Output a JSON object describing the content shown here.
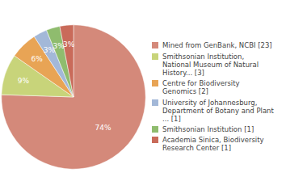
{
  "chart_data": {
    "type": "pie",
    "categories": [
      "Mined from GenBank, NCBI [23]",
      "Smithsonian Institution,\nNational Museum of Natural\nHistory... [3]",
      "Centre for Biodiversity\nGenomics [2]",
      "University of Johannesburg,\nDepartment of Botany and Plant\n... [1]",
      "Smithsonian Institution [1]",
      "Academia Sinica, Biodiversity\nResearch Center [1]"
    ],
    "values": [
      74,
      9,
      6,
      3,
      3,
      3
    ],
    "value_labels": [
      "74%",
      "9%",
      "6%",
      "3%",
      "3%",
      "3%"
    ],
    "colors": [
      "#d4897a",
      "#c8d47a",
      "#e8a455",
      "#a3b8d8",
      "#8fbc6e",
      "#c96b5a"
    ],
    "data_labels": true,
    "legend": "right"
  }
}
